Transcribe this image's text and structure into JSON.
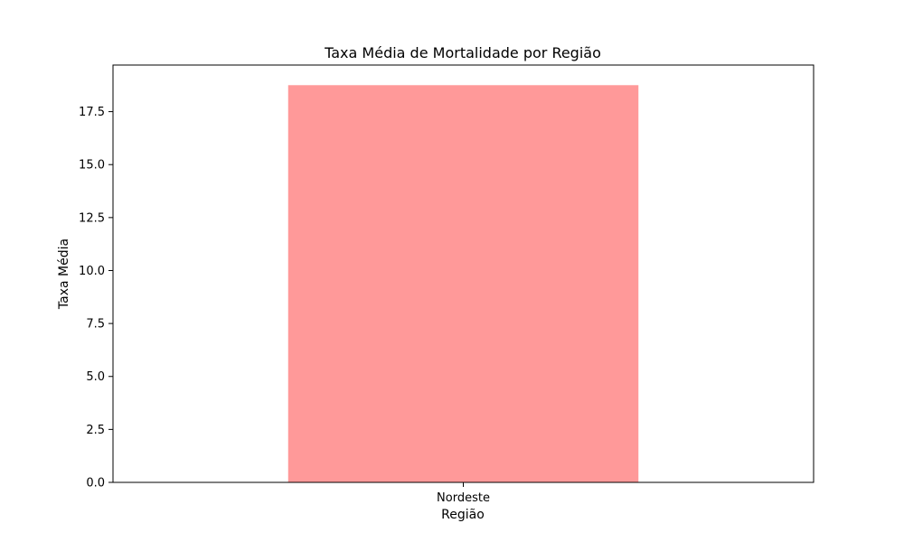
{
  "chart_data": {
    "type": "bar",
    "title": "Taxa Média de Mortalidade por Região",
    "xlabel": "Região",
    "ylabel": "Taxa Média",
    "categories": [
      "Nordeste"
    ],
    "values": [
      18.75
    ],
    "ylim": [
      0,
      19.7
    ],
    "yticks": [
      0,
      2.5,
      5,
      7.5,
      10,
      12.5,
      15,
      17.5
    ],
    "ytick_labels": [
      "0.0",
      "2.5",
      "5.0",
      "7.5",
      "10.0",
      "12.5",
      "15.0",
      "17.5"
    ],
    "bar_color": "#ff9999",
    "grid": false,
    "legend": "none"
  }
}
